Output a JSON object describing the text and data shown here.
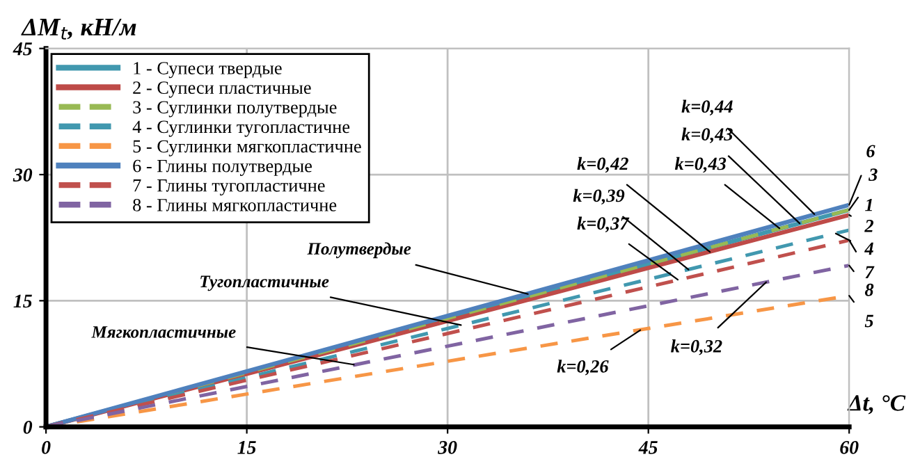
{
  "chart_data": {
    "type": "line",
    "xlabel": "Δt, °C",
    "ylabel": "ΔM$_{t}$, кН/м",
    "x": [
      0,
      60
    ],
    "series": [
      {
        "name": "1 - Супеси твердые",
        "color": "#4198af",
        "values": [
          0,
          25.8
        ],
        "line_style": "solid"
      },
      {
        "name": "2 - Супеси пластичные",
        "color": "#be4b48",
        "values": [
          0,
          25.2
        ],
        "line_style": "solid"
      },
      {
        "name": "3 - Суглинки полутвердые",
        "color": "#98b954",
        "values": [
          0,
          25.8
        ],
        "line_style": "dashed"
      },
      {
        "name": "4 - Суглинки тугопластичне",
        "color": "#4198af",
        "values": [
          0,
          23.4
        ],
        "line_style": "dashed"
      },
      {
        "name": "5 - Суглинки мягкопластичне",
        "color": "#f79646",
        "values": [
          0,
          15.6
        ],
        "line_style": "dashed"
      },
      {
        "name": "6 - Глины полутвердые",
        "color": "#4f81bd",
        "values": [
          0,
          26.4
        ],
        "line_style": "solid"
      },
      {
        "name": "7 - Глины тугопластичне",
        "color": "#c0504d",
        "values": [
          0,
          22.2
        ],
        "line_style": "dashed"
      },
      {
        "name": "8 - Глины мягкопластичне",
        "color": "#8064a2",
        "values": [
          0,
          19.2
        ],
        "line_style": "dashed"
      }
    ],
    "xlim": [
      0,
      60
    ],
    "ylim": [
      0,
      45
    ],
    "xticks": [
      0,
      15,
      30,
      45,
      60
    ],
    "yticks": [
      0,
      15,
      30,
      45
    ],
    "grid": true,
    "legend": "top left",
    "annotations": [
      {
        "text": "k=0,44",
        "x": 57.4,
        "y": 25.3
      },
      {
        "text": "k=0,43",
        "x": 56.3,
        "y": 24.2
      },
      {
        "text": "k=0,43",
        "x": 54.8,
        "y": 23.6
      },
      {
        "text": "k=0,42",
        "x": 49.6,
        "y": 20.8
      },
      {
        "text": "k=0,39",
        "x": 48.0,
        "y": 18.7
      },
      {
        "text": "k=0,37",
        "x": 47.2,
        "y": 17.5
      },
      {
        "text": "k=0,32",
        "x": 53.8,
        "y": 17.2
      },
      {
        "text": "k=0,26",
        "x": 44.4,
        "y": 11.5
      },
      {
        "text": "6",
        "x": 60,
        "y": 26.4
      },
      {
        "text": "3",
        "x": 60,
        "y": 25.8
      },
      {
        "text": "1",
        "x": 60,
        "y": 25.8
      },
      {
        "text": "2",
        "x": 60,
        "y": 25.2
      },
      {
        "text": "4",
        "x": 59,
        "y": 23.0
      },
      {
        "text": "7",
        "x": 60,
        "y": 22.2
      },
      {
        "text": "8",
        "x": 60,
        "y": 19.2
      },
      {
        "text": "5",
        "x": 60,
        "y": 15.6
      },
      {
        "text": "Полутвердые",
        "x": 36,
        "y": 15.8
      },
      {
        "text": "Тугопластичные",
        "x": 31,
        "y": 12.1
      },
      {
        "text": "Мягкопластичные",
        "x": 23,
        "y": 7.4
      }
    ]
  }
}
